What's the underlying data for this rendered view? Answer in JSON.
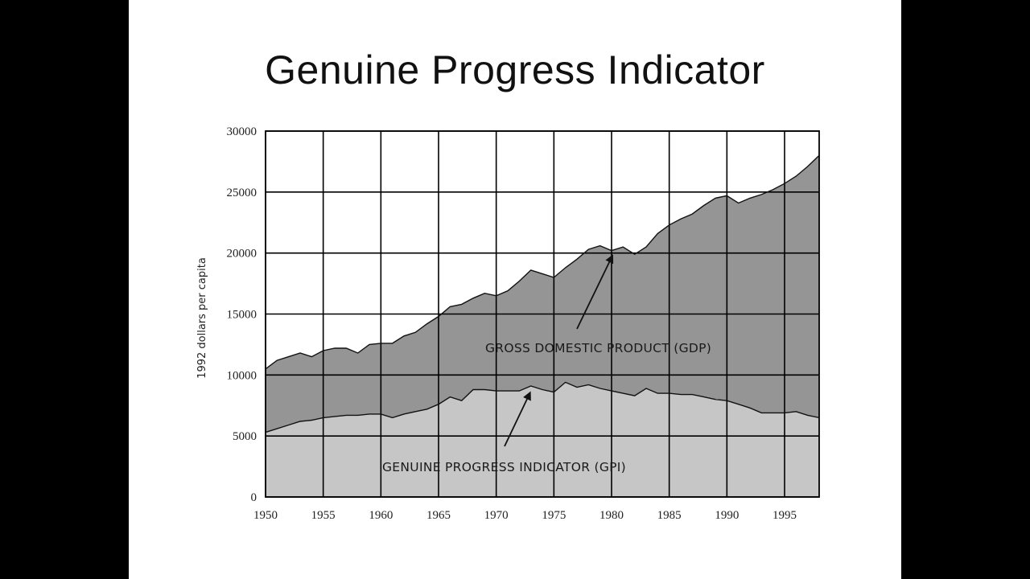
{
  "slide": {
    "title": "Genuine Progress Indicator"
  },
  "colors": {
    "gdp_area": "#959595",
    "gpi_area": "#c6c6c6",
    "grid": "#000000",
    "line": "#111111"
  },
  "chart_data": {
    "type": "area",
    "title": "Genuine Progress Indicator",
    "xlabel": "",
    "ylabel": "1992 dollars per capita",
    "xlim": [
      1950,
      1998
    ],
    "ylim": [
      0,
      30000
    ],
    "x_ticks": [
      1950,
      1955,
      1960,
      1965,
      1970,
      1975,
      1980,
      1985,
      1990,
      1995
    ],
    "y_ticks": [
      0,
      5000,
      10000,
      15000,
      20000,
      25000,
      30000
    ],
    "grid": true,
    "x": [
      1950,
      1951,
      1952,
      1953,
      1954,
      1955,
      1956,
      1957,
      1958,
      1959,
      1960,
      1961,
      1962,
      1963,
      1964,
      1965,
      1966,
      1967,
      1968,
      1969,
      1970,
      1971,
      1972,
      1973,
      1974,
      1975,
      1976,
      1977,
      1978,
      1979,
      1980,
      1981,
      1982,
      1983,
      1984,
      1985,
      1986,
      1987,
      1988,
      1989,
      1990,
      1991,
      1992,
      1993,
      1994,
      1995,
      1996,
      1997,
      1998
    ],
    "series": [
      {
        "name": "GROSS DOMESTIC PRODUCT (GDP)",
        "values": [
          10500,
          11200,
          11500,
          11800,
          11500,
          12000,
          12200,
          12200,
          11800,
          12500,
          12600,
          12600,
          13200,
          13500,
          14200,
          14800,
          15600,
          15800,
          16300,
          16700,
          16500,
          16900,
          17700,
          18600,
          18300,
          18000,
          18800,
          19500,
          20300,
          20600,
          20200,
          20500,
          19900,
          20500,
          21600,
          22300,
          22800,
          23200,
          23900,
          24500,
          24700,
          24100,
          24500,
          24800,
          25200,
          25700,
          26300,
          27100,
          28000
        ]
      },
      {
        "name": "GENUINE PROGRESS INDICATOR (GPI)",
        "values": [
          5300,
          5600,
          5900,
          6200,
          6300,
          6500,
          6600,
          6700,
          6700,
          6800,
          6800,
          6500,
          6800,
          7000,
          7200,
          7600,
          8200,
          7900,
          8800,
          8800,
          8700,
          8700,
          8700,
          9100,
          8800,
          8600,
          9400,
          9000,
          9200,
          8900,
          8700,
          8500,
          8300,
          8900,
          8500,
          8500,
          8400,
          8400,
          8200,
          8000,
          7900,
          7600,
          7300,
          6900,
          6900,
          6900,
          7000,
          6700,
          6500
        ]
      }
    ],
    "annotations": [
      {
        "text": "GROSS DOMESTIC PRODUCT (GDP)",
        "points_to_year": 1980,
        "points_to_value": 20100
      },
      {
        "text": "GENUINE PROGRESS INDICATOR (GPI)",
        "points_to_year": 1973,
        "points_to_value": 9000
      }
    ]
  }
}
